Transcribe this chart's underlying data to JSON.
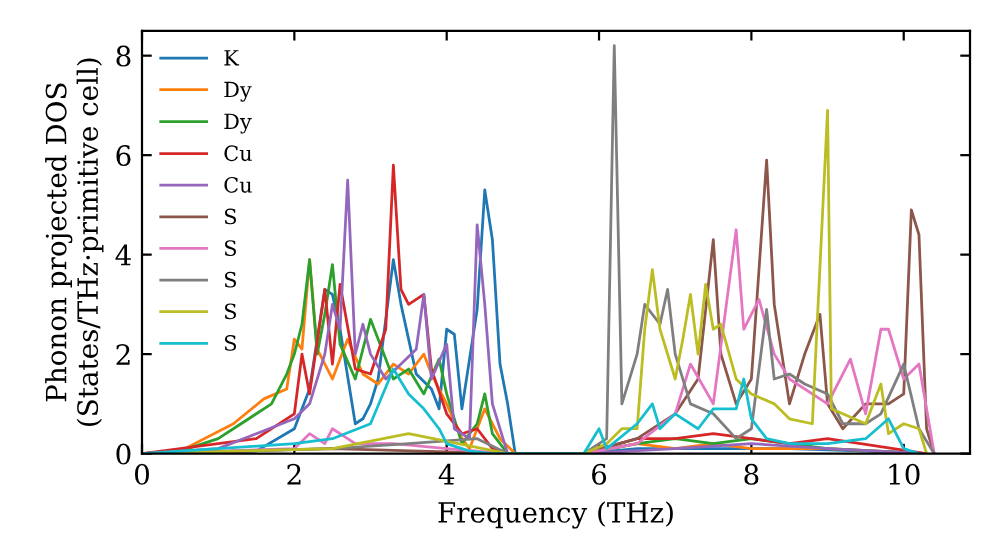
{
  "chart_data": {
    "type": "line",
    "xlabel": "Frequency (THz)",
    "ylabel": "Phonon projected DOS\n(States/THz·primitive cell)",
    "xlim": [
      0,
      10.87
    ],
    "ylim": [
      0,
      8.5
    ],
    "xticks": [
      0,
      2,
      4,
      6,
      8,
      10
    ],
    "yticks": [
      0,
      2,
      4,
      6,
      8
    ],
    "grid": false,
    "legend": "top left",
    "marker": "none",
    "line_style": "solid",
    "series": [
      {
        "name": "K",
        "color": "#1f77b4",
        "x": [
          0,
          1.5,
          2.0,
          2.2,
          2.4,
          2.5,
          2.6,
          2.8,
          2.9,
          3.0,
          3.1,
          3.3,
          3.4,
          3.6,
          3.8,
          3.9,
          4.0,
          4.1,
          4.2,
          4.3,
          4.4,
          4.5,
          4.6,
          4.7,
          4.8,
          4.9,
          5.8,
          6.5,
          7.5,
          8.5,
          9.5,
          10.3
        ],
        "values": [
          0,
          0.05,
          0.5,
          1.3,
          3.3,
          3.2,
          2.5,
          0.6,
          0.7,
          1.0,
          1.5,
          3.9,
          3.0,
          1.6,
          1.3,
          0.9,
          2.5,
          2.4,
          0.9,
          1.9,
          2.9,
          5.3,
          4.3,
          1.8,
          1.0,
          0,
          0,
          0.1,
          0.1,
          0.1,
          0.05,
          0
        ]
      },
      {
        "name": "Dy",
        "color": "#ff7f0e",
        "x": [
          0,
          0.5,
          1.2,
          1.6,
          1.9,
          2.0,
          2.1,
          2.2,
          2.3,
          2.5,
          2.7,
          2.9,
          3.1,
          3.3,
          3.5,
          3.7,
          3.8,
          4.0,
          4.2,
          4.3,
          4.5,
          4.7,
          4.9,
          5.8,
          6.5,
          7.0,
          7.5,
          8.0,
          9.0,
          10.3
        ],
        "values": [
          0,
          0.05,
          0.6,
          1.1,
          1.3,
          2.3,
          2.1,
          3.9,
          2.1,
          1.5,
          2.3,
          1.6,
          1.4,
          1.8,
          1.6,
          2.0,
          1.6,
          1.0,
          0.3,
          0.1,
          0.9,
          0.3,
          0,
          0,
          0.2,
          0.1,
          0.2,
          0.1,
          0.1,
          0
        ]
      },
      {
        "name": "Dy",
        "color": "#2ca02c",
        "x": [
          0,
          0.5,
          1.0,
          1.3,
          1.7,
          1.9,
          2.0,
          2.1,
          2.2,
          2.3,
          2.4,
          2.5,
          2.6,
          2.8,
          3.0,
          3.2,
          3.3,
          3.5,
          3.7,
          3.9,
          4.0,
          4.2,
          4.4,
          4.5,
          4.6,
          4.8,
          5.8,
          6.5,
          7.0,
          7.5,
          8.0,
          9.0,
          10.3
        ],
        "values": [
          0,
          0.05,
          0.3,
          0.6,
          1.0,
          1.6,
          2.0,
          2.6,
          3.9,
          2.0,
          2.8,
          3.8,
          2.2,
          1.5,
          2.7,
          1.9,
          1.5,
          1.7,
          1.2,
          1.9,
          1.2,
          0.2,
          0.6,
          1.2,
          0.4,
          0,
          0,
          0.2,
          0.3,
          0.2,
          0.3,
          0.1,
          0
        ]
      },
      {
        "name": "Cu",
        "color": "#d62728",
        "x": [
          0,
          1.5,
          2.0,
          2.1,
          2.2,
          2.4,
          2.5,
          2.6,
          2.8,
          3.0,
          3.2,
          3.3,
          3.4,
          3.5,
          3.7,
          3.8,
          4.0,
          4.2,
          4.4,
          4.6,
          4.8,
          5.8,
          6.5,
          7.0,
          7.5,
          8.0,
          8.5,
          9.0,
          10.3
        ],
        "values": [
          0,
          0.3,
          0.8,
          2.0,
          1.2,
          3.3,
          1.8,
          3.4,
          1.7,
          1.6,
          2.5,
          5.8,
          3.3,
          3.0,
          3.2,
          1.7,
          0.8,
          0.4,
          0.5,
          0.1,
          0,
          0,
          0.3,
          0.3,
          0.4,
          0.3,
          0.2,
          0.3,
          0
        ]
      },
      {
        "name": "Cu",
        "color": "#9467bd",
        "x": [
          0,
          1.0,
          1.5,
          2.0,
          2.2,
          2.4,
          2.5,
          2.6,
          2.7,
          2.8,
          2.9,
          3.0,
          3.2,
          3.4,
          3.6,
          3.7,
          3.8,
          4.0,
          4.1,
          4.3,
          4.4,
          4.5,
          4.6,
          4.8,
          5.8,
          7.0,
          8.0,
          9.0,
          10.3
        ],
        "values": [
          0,
          0.1,
          0.4,
          0.7,
          1.0,
          2.0,
          3.0,
          2.5,
          5.5,
          2.0,
          2.6,
          2.0,
          1.5,
          1.8,
          2.1,
          3.2,
          1.5,
          2.2,
          0.5,
          0.3,
          4.6,
          3.0,
          1.0,
          0,
          0,
          0.1,
          0.2,
          0.1,
          0
        ]
      },
      {
        "name": "S",
        "color": "#8c564b",
        "x": [
          0,
          2.5,
          4.8,
          5.8,
          6.5,
          7.0,
          7.3,
          7.5,
          7.6,
          7.8,
          8.0,
          8.2,
          8.3,
          8.5,
          8.7,
          8.9,
          9.0,
          9.2,
          9.5,
          9.8,
          10.0,
          10.1,
          10.2,
          10.3,
          10.4
        ],
        "values": [
          0,
          0.1,
          0,
          0,
          0.3,
          0.8,
          1.5,
          4.3,
          2.0,
          1.0,
          1.5,
          5.9,
          3.0,
          1.0,
          2.0,
          2.8,
          1.0,
          0.5,
          1.0,
          1.0,
          1.2,
          4.9,
          4.4,
          0.5,
          0
        ]
      },
      {
        "name": "S",
        "color": "#e377c2",
        "x": [
          0,
          2.0,
          2.2,
          2.4,
          2.5,
          2.8,
          3.3,
          4.0,
          4.8,
          5.8,
          6.5,
          7.0,
          7.2,
          7.5,
          7.8,
          7.9,
          8.1,
          8.3,
          8.5,
          9.0,
          9.3,
          9.5,
          9.7,
          9.8,
          10.0,
          10.2,
          10.4
        ],
        "values": [
          0,
          0.1,
          0.4,
          0.2,
          0.5,
          0.2,
          0.2,
          0.1,
          0,
          0,
          0.2,
          0.8,
          1.8,
          1.0,
          4.5,
          2.5,
          3.1,
          2.0,
          1.5,
          1.0,
          1.9,
          0.8,
          2.5,
          2.5,
          1.5,
          1.8,
          0
        ]
      },
      {
        "name": "S",
        "color": "#7f7f7f",
        "x": [
          0,
          2.5,
          3.5,
          4.4,
          4.8,
          5.8,
          6.1,
          6.2,
          6.3,
          6.5,
          6.6,
          6.8,
          6.9,
          7.0,
          7.2,
          7.5,
          7.8,
          8.0,
          8.2,
          8.3,
          8.5,
          8.7,
          9.0,
          9.2,
          9.5,
          9.7,
          10.0,
          10.2,
          10.4
        ],
        "values": [
          0,
          0.1,
          0.2,
          0.3,
          0,
          0,
          0.3,
          8.2,
          1.0,
          2.0,
          3.0,
          2.6,
          3.3,
          2.0,
          1.0,
          0.8,
          0.3,
          0.5,
          2.9,
          1.5,
          1.6,
          1.4,
          1.2,
          0.6,
          0.6,
          0.8,
          1.8,
          0.5,
          0
        ]
      },
      {
        "name": "S",
        "color": "#bcbd22",
        "x": [
          0,
          2.5,
          3.5,
          4.8,
          5.8,
          6.1,
          6.3,
          6.5,
          6.6,
          6.7,
          6.8,
          7.0,
          7.1,
          7.2,
          7.3,
          7.4,
          7.5,
          7.6,
          7.8,
          8.0,
          8.3,
          8.5,
          8.8,
          9.0,
          9.05,
          9.2,
          9.5,
          9.7,
          9.8,
          10.0,
          10.2,
          10.3
        ],
        "values": [
          0,
          0.1,
          0.4,
          0,
          0,
          0.2,
          0.5,
          0.5,
          2.5,
          3.7,
          2.5,
          1.5,
          2.3,
          3.2,
          2.0,
          3.4,
          2.5,
          2.6,
          1.5,
          1.2,
          1.0,
          0.7,
          0.6,
          6.9,
          0.9,
          0.8,
          0.6,
          1.4,
          0.4,
          0.6,
          0.5,
          0
        ]
      },
      {
        "name": "S",
        "color": "#17becf",
        "x": [
          0,
          2.0,
          2.5,
          3.0,
          3.3,
          3.5,
          3.7,
          3.9,
          4.0,
          4.3,
          4.6,
          5.8,
          6.0,
          6.1,
          6.5,
          6.7,
          6.8,
          7.0,
          7.3,
          7.5,
          7.8,
          7.9,
          8.0,
          8.2,
          8.5,
          9.0,
          9.5,
          9.8,
          10.0,
          10.2
        ],
        "values": [
          0,
          0.2,
          0.3,
          0.6,
          1.7,
          1.2,
          0.9,
          0.5,
          0.2,
          0.05,
          0,
          0,
          0.5,
          0.1,
          0.6,
          1.0,
          0.5,
          0.8,
          0.5,
          0.9,
          0.9,
          1.5,
          0.7,
          0.3,
          0.2,
          0.2,
          0.3,
          0.7,
          0.1,
          0
        ]
      }
    ]
  }
}
